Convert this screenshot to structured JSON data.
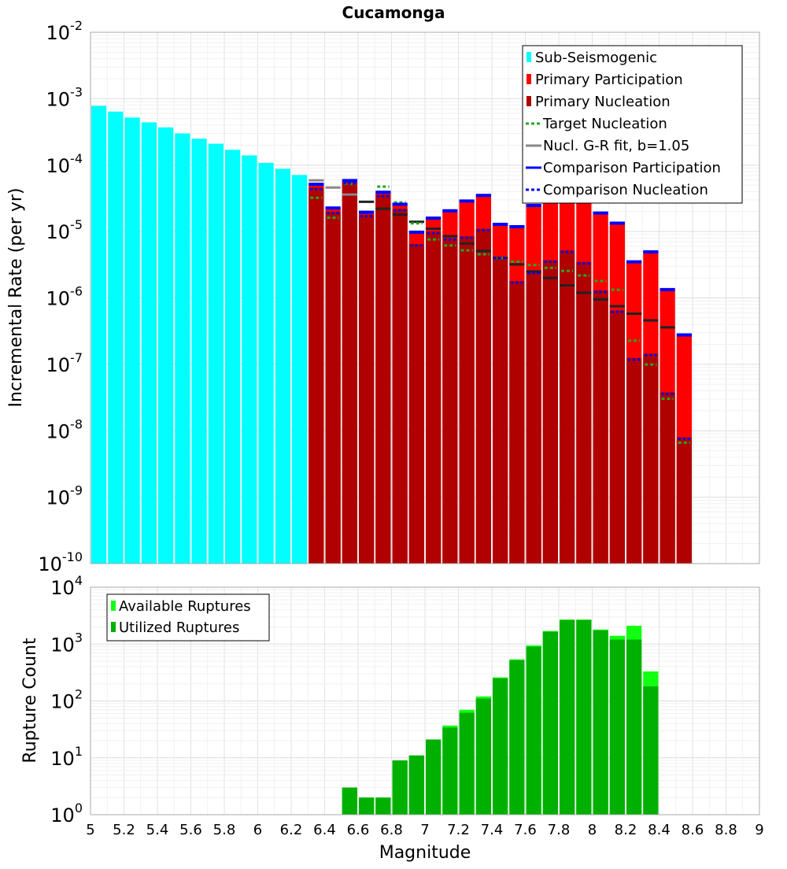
{
  "chart_data": [
    {
      "type": "bar",
      "title": "Cucamonga",
      "ylabel": "Incremental Rate (per yr)",
      "xlabel": "",
      "scale": "log",
      "xlim": [
        5,
        9
      ],
      "ylim_exp": [
        -10,
        -2
      ],
      "bar_width": 0.1,
      "grid": true,
      "legend_position": "top-right",
      "legend": [
        {
          "label": "Sub-Seismogenic",
          "marker": "bar",
          "color": "#00ffff"
        },
        {
          "label": "Primary Participation",
          "marker": "bar",
          "color": "#ff0000"
        },
        {
          "label": "Primary Nucleation",
          "marker": "bar",
          "color": "#b00000"
        },
        {
          "label": "Target Nucleation",
          "marker": "dotted",
          "color": "#22aa22"
        },
        {
          "label": "Nucl. G-R fit, b=1.05",
          "marker": "line",
          "color": "#888888"
        },
        {
          "label": "Comparison Participation",
          "marker": "line",
          "color": "#0000ff"
        },
        {
          "label": "Comparison Nucleation",
          "marker": "dotted",
          "color": "#0000ff"
        }
      ],
      "colors": {
        "sub_seismogenic": "#00ffff",
        "participation": "#ff0000",
        "nucleation": "#b00000",
        "target": "#22aa22",
        "gr_fit": "#888888",
        "comparison": "#0000ff",
        "gr_fit_dark": "#222222"
      },
      "series": [
        {
          "name": "Sub-Seismogenic",
          "x": [
            5.05,
            5.15,
            5.25,
            5.35,
            5.45,
            5.55,
            5.65,
            5.75,
            5.85,
            5.95,
            6.05,
            6.15,
            6.25
          ],
          "values": [
            0.00078,
            0.00064,
            0.00052,
            0.00044,
            0.00037,
            0.0003,
            0.00025,
            0.00021,
            0.00017,
            0.00014,
            0.000108,
            8.8e-05,
            7.1e-05
          ]
        },
        {
          "name": "Primary Participation",
          "x": [
            6.35,
            6.45,
            6.55,
            6.65,
            6.75,
            6.85,
            6.95,
            7.05,
            7.15,
            7.25,
            7.35,
            7.45,
            7.55,
            7.65,
            7.75,
            7.85,
            7.95,
            8.05,
            8.15,
            8.25,
            8.35,
            8.45,
            8.55
          ],
          "values": [
            5e-05,
            2.2e-05,
            5.7e-05,
            1.9e-05,
            3.8e-05,
            2.5e-05,
            9.5e-06,
            1.55e-05,
            2e-05,
            2.8e-05,
            3.4e-05,
            1.25e-05,
            1.15e-05,
            2.4e-05,
            4.2e-05,
            5.2e-05,
            4.3e-05,
            1.85e-05,
            1.3e-05,
            3.4e-06,
            4.8e-06,
            1.3e-06,
            2.7e-07
          ]
        },
        {
          "name": "Primary Nucleation",
          "x": [
            6.35,
            6.45,
            6.55,
            6.65,
            6.75,
            6.85,
            6.95,
            7.05,
            7.15,
            7.25,
            7.35,
            7.45,
            7.55,
            7.65,
            7.75,
            7.85,
            7.95,
            8.05,
            8.15,
            8.25,
            8.35,
            8.45,
            8.55
          ],
          "values": [
            4.6e-05,
            2e-05,
            5.6e-05,
            1.8e-05,
            3.6e-05,
            2.2e-05,
            6.5e-06,
            1e-05,
            8e-06,
            8.5e-06,
            1.1e-05,
            4.2e-06,
            1.8e-06,
            2.5e-06,
            3.7e-06,
            5.2e-06,
            3.5e-06,
            1.3e-06,
            6.5e-07,
            1.25e-07,
            1.45e-07,
            3.8e-08,
            8e-09
          ]
        },
        {
          "name": "Target Nucleation",
          "x": [
            6.35,
            6.45,
            6.55,
            6.65,
            6.75,
            6.85,
            6.95,
            7.05,
            7.15,
            7.25,
            7.35,
            7.45,
            7.55,
            7.65,
            7.75,
            7.85,
            7.95,
            8.05,
            8.15,
            8.25,
            8.35,
            8.45,
            8.55
          ],
          "values": [
            3.4e-05,
            1.7e-05,
            5.5e-05,
            2.1e-05,
            5e-05,
            2.9e-05,
            1.4e-05,
            8e-06,
            6.5e-06,
            5.5e-06,
            4.8e-06,
            4.2e-06,
            3.7e-06,
            3.3e-06,
            3e-06,
            2.7e-06,
            2.3e-06,
            1.9e-06,
            1.4e-06,
            2.4e-07,
            1.05e-07,
            3.2e-08,
            7e-09
          ]
        },
        {
          "name": "Nucl. G-R fit, b=1.05",
          "x": [
            6.35,
            6.45,
            6.55,
            6.65,
            6.75,
            6.85,
            6.95,
            7.05,
            7.15,
            7.25,
            7.35,
            7.45,
            7.55,
            7.65,
            7.75,
            7.85,
            7.95,
            8.05,
            8.15,
            8.25,
            8.35,
            8.45
          ],
          "values": [
            5.9e-05,
            4.6e-05,
            3.6e-05,
            2.8e-05,
            2.2e-05,
            1.8e-05,
            1.4e-05,
            1.1e-05,
            8.5e-06,
            6.6e-06,
            5.1e-06,
            4e-06,
            3.2e-06,
            2.5e-06,
            2e-06,
            1.55e-06,
            1.2e-06,
            9.5e-07,
            7.5e-07,
            5.8e-07,
            4.6e-07,
            3.6e-07
          ]
        },
        {
          "name": "Comparison Participation",
          "x": [
            6.35,
            6.45,
            6.55,
            6.65,
            6.75,
            6.85,
            6.95,
            7.05,
            7.15,
            7.25,
            7.35,
            7.45,
            7.55,
            7.65,
            7.75,
            7.85,
            7.95,
            8.05,
            8.15,
            8.25,
            8.35,
            8.45,
            8.55
          ],
          "values": [
            5e-05,
            2.2e-05,
            5.7e-05,
            1.9e-05,
            3.8e-05,
            2.5e-05,
            9.5e-06,
            1.55e-05,
            2e-05,
            2.8e-05,
            3.4e-05,
            1.25e-05,
            1.15e-05,
            2.4e-05,
            4.2e-05,
            5.2e-05,
            4.3e-05,
            1.85e-05,
            1.3e-05,
            3.4e-06,
            4.8e-06,
            1.3e-06,
            2.7e-07
          ]
        },
        {
          "name": "Comparison Nucleation",
          "x": [
            6.35,
            6.45,
            6.55,
            6.65,
            6.75,
            6.85,
            6.95,
            7.05,
            7.15,
            7.25,
            7.35,
            7.45,
            7.55,
            7.65,
            7.75,
            7.85,
            7.95,
            8.05,
            8.15,
            8.25,
            8.35,
            8.45,
            8.55
          ],
          "values": [
            4.6e-05,
            2e-05,
            5.6e-05,
            1.8e-05,
            3.6e-05,
            2.2e-05,
            6.5e-06,
            1e-05,
            8e-06,
            8.5e-06,
            1.1e-05,
            4.2e-06,
            1.8e-06,
            2.5e-06,
            3.7e-06,
            5.2e-06,
            3.5e-06,
            1.3e-06,
            6.5e-07,
            1.25e-07,
            1.45e-07,
            3.8e-08,
            8e-09
          ]
        }
      ]
    },
    {
      "type": "bar",
      "title": "",
      "ylabel": "Rupture Count",
      "xlabel": "Magnitude",
      "scale": "log",
      "xlim": [
        5,
        9
      ],
      "ylim_exp": [
        0,
        4
      ],
      "bar_width": 0.1,
      "grid": true,
      "legend_position": "top-left",
      "legend": [
        {
          "label": "Available Ruptures",
          "marker": "bar",
          "color": "#11ff11"
        },
        {
          "label": "Utilized Ruptures",
          "marker": "bar",
          "color": "#00b000"
        }
      ],
      "colors": {
        "available": "#11ff11",
        "utilized": "#00b000"
      },
      "x_ticks": [
        "5",
        "5.2",
        "5.4",
        "5.6",
        "5.8",
        "6",
        "6.2",
        "6.4",
        "6.6",
        "6.8",
        "7",
        "7.2",
        "7.4",
        "7.6",
        "7.8",
        "8",
        "8.2",
        "8.4",
        "8.6",
        "8.8",
        "9"
      ],
      "series": [
        {
          "name": "Available Ruptures",
          "x": [
            6.55,
            6.65,
            6.75,
            6.85,
            6.95,
            7.05,
            7.15,
            7.25,
            7.35,
            7.45,
            7.55,
            7.65,
            7.75,
            7.85,
            7.95,
            8.05,
            8.15,
            8.25,
            8.35
          ],
          "values": [
            3,
            2,
            2,
            9,
            11,
            21,
            37,
            70,
            120,
            260,
            540,
            950,
            1700,
            2700,
            2700,
            1800,
            1400,
            2100,
            330
          ]
        },
        {
          "name": "Utilized Ruptures",
          "x": [
            6.55,
            6.65,
            6.75,
            6.85,
            6.95,
            7.05,
            7.15,
            7.25,
            7.35,
            7.45,
            7.55,
            7.65,
            7.75,
            7.85,
            7.95,
            8.05,
            8.15,
            8.25,
            8.35
          ],
          "values": [
            3,
            2,
            2,
            9,
            11,
            21,
            34,
            62,
            110,
            250,
            520,
            900,
            1650,
            2650,
            2650,
            1750,
            1200,
            1200,
            180
          ]
        }
      ]
    }
  ]
}
